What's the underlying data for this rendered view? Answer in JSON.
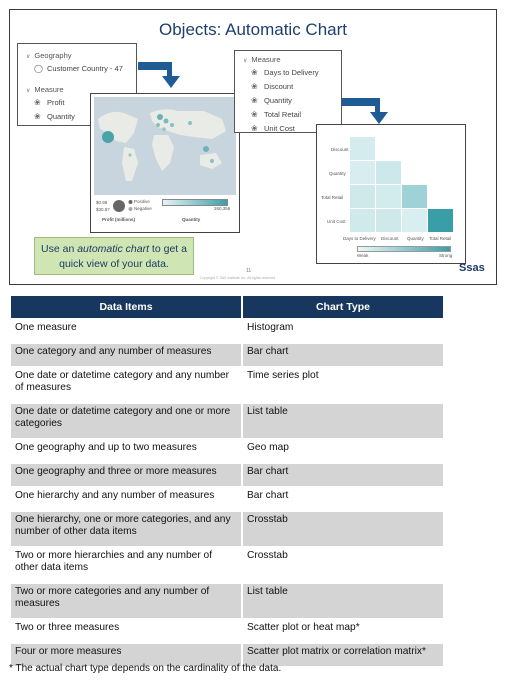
{
  "slide": {
    "title": "Objects: Automatic Chart",
    "panel_left": {
      "group1": "Geography",
      "group1_item": "Customer Country - 47",
      "group2": "Measure",
      "group2_items": [
        "Profit",
        "Quantity"
      ]
    },
    "panel_right": {
      "group": "Measure",
      "items": [
        "Days to Delivery",
        "Discount",
        "Quantity",
        "Total Retail",
        "Unit Cost"
      ]
    },
    "map_legend": {
      "val_top": "$0.98",
      "val_bottom": "$30.87",
      "positive": "Positive",
      "negative": "Negative",
      "bar_max": "260,356",
      "size_label": "Profit (millions)",
      "color_label": "Quantity"
    },
    "heatmap": {
      "row_labels": [
        "Discount",
        "Quantity",
        "Total Retail",
        "Unit Cost"
      ],
      "col_labels": [
        "Days to Delivery",
        "Discount",
        "Quantity",
        "Total Retail"
      ],
      "legend_low": "Weak",
      "legend_high": "Strong"
    },
    "callout": {
      "prefix": "Use an ",
      "emphasis": "automatic chart",
      "suffix": " to get a quick view of your data."
    },
    "slide_number": "11",
    "copyright": "Copyright © SAS Institute Inc. All rights reserved.",
    "logo": "Ssas"
  },
  "table": {
    "headers": [
      "Data Items",
      "Chart Type"
    ],
    "rows": [
      {
        "items": "One measure",
        "chart": "Histogram"
      },
      {
        "items": "One category and any number of measures",
        "chart": "Bar chart"
      },
      {
        "items": "One date or datetime category and any number of measures",
        "chart": "Time series plot"
      },
      {
        "items": "One date or datetime category and one or more categories",
        "chart": "List table"
      },
      {
        "items": "One geography and up to two measures",
        "chart": "Geo map"
      },
      {
        "items": "One geography and three or more measures",
        "chart": "Bar chart"
      },
      {
        "items": "One hierarchy and any number of measures",
        "chart": "Bar chart"
      },
      {
        "items": "One hierarchy, one or more categories, and any number of other data items",
        "chart": "Crosstab"
      },
      {
        "items": "Two or more hierarchies and any number of other data items",
        "chart": "Crosstab"
      },
      {
        "items": "Two or more categories and any number of measures",
        "chart": "List table"
      },
      {
        "items": "Two or three measures",
        "chart": "Scatter plot or heat map*"
      },
      {
        "items": "Four or more measures",
        "chart": "Scatter plot matrix or correlation matrix*"
      }
    ]
  },
  "footnote": "* The actual chart type depends on the cardinality of the data."
}
